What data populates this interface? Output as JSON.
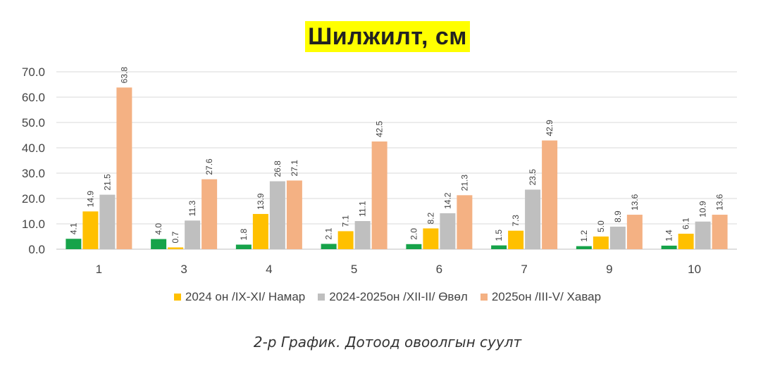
{
  "title": "Шилжилт, см",
  "caption": "2-р График. Дотоод овоолгын суулт",
  "chart_data": {
    "type": "bar",
    "title": "Шилжилт, см",
    "categories": [
      "1",
      "3",
      "4",
      "5",
      "6",
      "7",
      "9",
      "10"
    ],
    "ylim": [
      0,
      70
    ],
    "yticks": [
      "0.0",
      "10.0",
      "20.0",
      "30.0",
      "40.0",
      "50.0",
      "60.0",
      "70.0"
    ],
    "grid": true,
    "legend_position": "bottom",
    "series": [
      {
        "color": "#17a34a",
        "values": [
          4.1,
          4.0,
          1.8,
          2.1,
          2.0,
          1.5,
          1.2,
          1.4
        ],
        "labels": [
          "4.1",
          "4.0",
          "1.8",
          "2.1",
          "2.0",
          "1.5",
          "1.2",
          "1.4"
        ]
      },
      {
        "name": "2024 он /IX-XI/ Намар",
        "color": "#ffc000",
        "values": [
          14.9,
          0.7,
          13.9,
          7.1,
          8.2,
          7.3,
          5.0,
          6.1
        ],
        "labels": [
          "14.9",
          "0.7",
          "13.9",
          "7.1",
          "8.2",
          "7.3",
          "5.0",
          "6.1"
        ]
      },
      {
        "name": "2024-2025он /XII-II/ Өвөл",
        "color": "#bfbfbf",
        "values": [
          21.5,
          11.3,
          26.8,
          11.1,
          14.2,
          23.5,
          8.9,
          10.9
        ],
        "labels": [
          "21.5",
          "11.3",
          "26.8",
          "11.1",
          "14.2",
          "23.5",
          "8.9",
          "10.9"
        ]
      },
      {
        "name": "2025он /III-V/ Хавар",
        "color": "#f4b183",
        "values": [
          63.8,
          27.6,
          27.1,
          42.5,
          21.3,
          42.9,
          13.6,
          13.6
        ],
        "labels": [
          "63.8",
          "27.6",
          "27.1",
          "42.5",
          "21.3",
          "42.9",
          "13.6",
          "13.6"
        ]
      }
    ]
  }
}
